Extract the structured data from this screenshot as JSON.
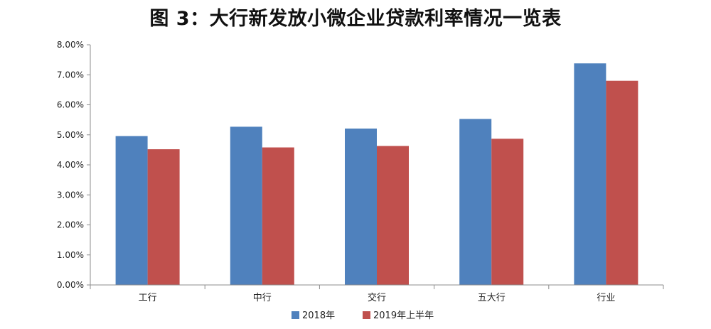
{
  "chart_data": {
    "type": "bar",
    "title": "图 3：大行新发放小微企业贷款利率情况一览表",
    "categories": [
      "工行",
      "中行",
      "交行",
      "五大行",
      "行业"
    ],
    "series": [
      {
        "name": "2018年",
        "values": [
          4.96,
          5.27,
          5.21,
          5.53,
          7.38
        ],
        "color": "#4f81bd"
      },
      {
        "name": "2019年上半年",
        "values": [
          4.52,
          4.58,
          4.63,
          4.87,
          6.8
        ],
        "color": "#c0504d"
      }
    ],
    "y_ticks": [
      "0.00%",
      "1.00%",
      "2.00%",
      "3.00%",
      "4.00%",
      "5.00%",
      "6.00%",
      "7.00%",
      "8.00%"
    ],
    "ylim": [
      0,
      8
    ],
    "xlabel": "",
    "ylabel": "",
    "grid": false,
    "legend_position": "bottom"
  }
}
